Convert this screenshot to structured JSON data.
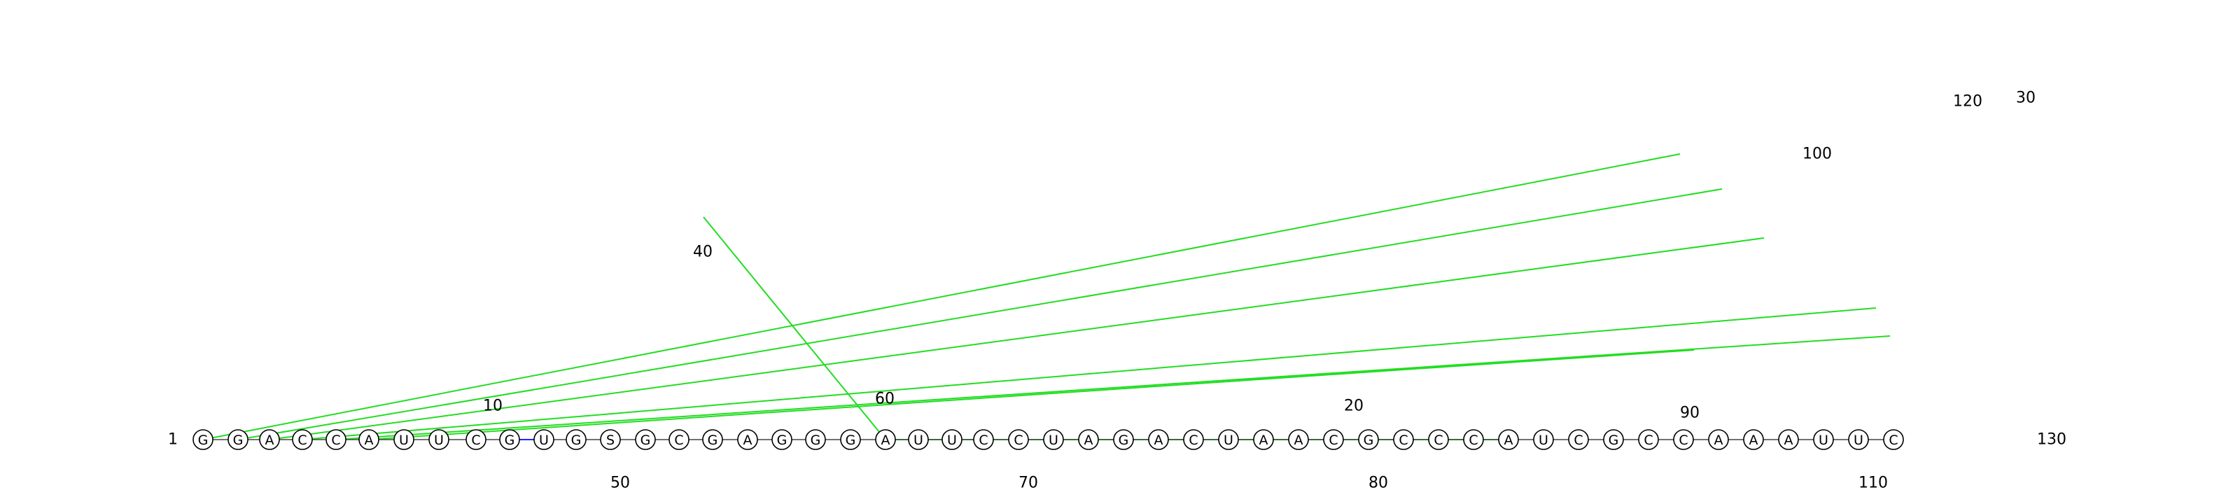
{
  "colors": {
    "backbone": "#444444",
    "basepair": "#2a22ff",
    "tertiary": "#22dd22",
    "node": "#000000"
  },
  "sequence": "GGACCAUUCGUGSGCGAGGGAUUCCUAGACUAACGCCCAUCGCCAAAUUC",
  "position_labels": [
    "1",
    "10",
    "20",
    "30",
    "40",
    "50",
    "60",
    "70",
    "80",
    "90",
    "100",
    "110",
    "120",
    "130"
  ]
}
